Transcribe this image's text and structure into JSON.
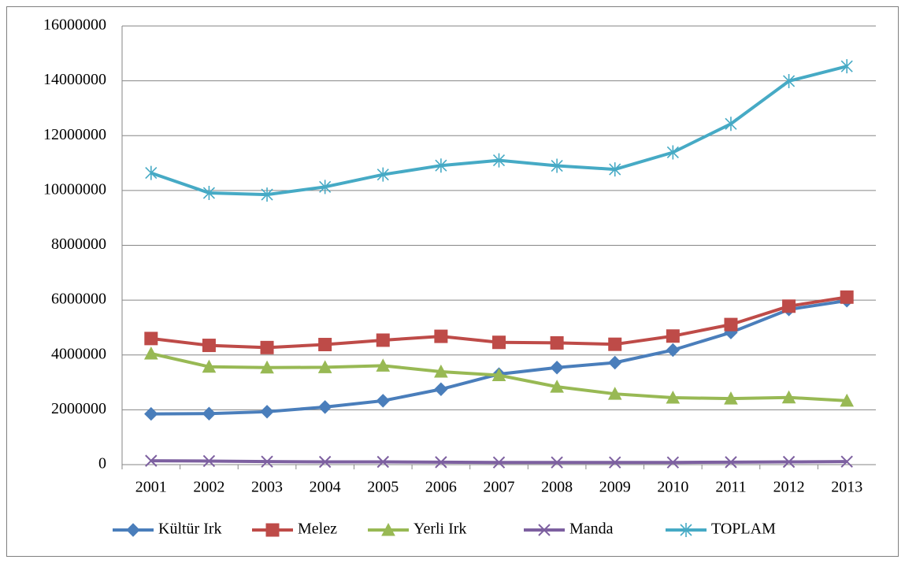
{
  "chart_data": {
    "type": "line",
    "x": [
      "2001",
      "2002",
      "2003",
      "2004",
      "2005",
      "2006",
      "2007",
      "2008",
      "2009",
      "2010",
      "2011",
      "2012",
      "2013"
    ],
    "ylim": [
      0,
      16000000
    ],
    "yticks": [
      0,
      2000000,
      4000000,
      6000000,
      8000000,
      10000000,
      12000000,
      14000000,
      16000000
    ],
    "grid": true,
    "legend": "bottom",
    "series": [
      {
        "name": "Kültür Irk",
        "color": "#4a7ebb",
        "marker": "diamond",
        "values": [
          1850000,
          1860000,
          1930000,
          2100000,
          2330000,
          2750000,
          3300000,
          3540000,
          3720000,
          4180000,
          4820000,
          5660000,
          5980000
        ]
      },
      {
        "name": "Melez",
        "color": "#be4b48",
        "marker": "square",
        "values": [
          4600000,
          4350000,
          4270000,
          4380000,
          4540000,
          4680000,
          4460000,
          4440000,
          4390000,
          4690000,
          5110000,
          5780000,
          6110000
        ]
      },
      {
        "name": "Yerli Irk",
        "color": "#98b954",
        "marker": "triangle",
        "values": [
          4050000,
          3570000,
          3540000,
          3550000,
          3610000,
          3390000,
          3260000,
          2840000,
          2580000,
          2440000,
          2410000,
          2450000,
          2330000
        ]
      },
      {
        "name": "Manda",
        "color": "#7d60a0",
        "marker": "x",
        "values": [
          140000,
          130000,
          110000,
          100000,
          100000,
          90000,
          80000,
          80000,
          80000,
          80000,
          90000,
          100000,
          110000
        ]
      },
      {
        "name": "TOPLAM",
        "color": "#46aac5",
        "marker": "star",
        "values": [
          10640000,
          9910000,
          9850000,
          10130000,
          10580000,
          10910000,
          11100000,
          10900000,
          10770000,
          11390000,
          12430000,
          13990000,
          14530000
        ]
      }
    ]
  }
}
